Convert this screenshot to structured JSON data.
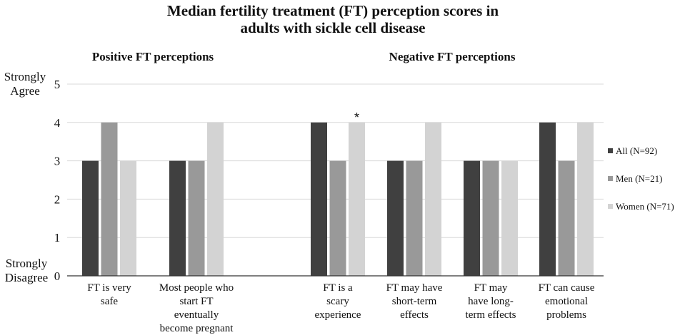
{
  "chart_data": {
    "type": "bar",
    "title_lines": [
      "Median fertility treatment (FT) perception scores in",
      "adults with sickle cell disease"
    ],
    "groups": [
      {
        "title": "Positive FT perceptions",
        "category_range": [
          0,
          1
        ]
      },
      {
        "title": "Negative FT perceptions",
        "category_range": [
          2,
          5
        ]
      }
    ],
    "categories": [
      [
        "FT is very",
        "safe"
      ],
      [
        "Most people who",
        "start FT",
        "eventually",
        "become pregnant"
      ],
      [
        "FT is a",
        "scary",
        "experience"
      ],
      [
        "FT may have",
        "short-term",
        "effects"
      ],
      [
        "FT may",
        "have long-",
        "term effects"
      ],
      [
        "FT can cause",
        "emotional",
        "problems"
      ]
    ],
    "series": [
      {
        "name": "All (N=92)",
        "color": "#404040",
        "values": [
          3,
          3,
          4,
          3,
          3,
          4
        ]
      },
      {
        "name": "Men (N=21)",
        "color": "#999999",
        "values": [
          4,
          3,
          3,
          3,
          3,
          3
        ]
      },
      {
        "name": "Women (N=71)",
        "color": "#d3d3d3",
        "values": [
          3,
          4,
          4,
          4,
          3,
          4
        ]
      }
    ],
    "ylim": [
      0,
      5
    ],
    "yticks": [
      "0",
      "1",
      "2",
      "3",
      "4",
      "5"
    ],
    "y_top_label": [
      "Strongly",
      "Agree"
    ],
    "y_bottom_label": [
      "Strongly",
      "Disagree"
    ],
    "grid": true,
    "legend_position": "right",
    "annotations": [
      {
        "text": "*",
        "category": 2,
        "series": 2
      }
    ]
  }
}
